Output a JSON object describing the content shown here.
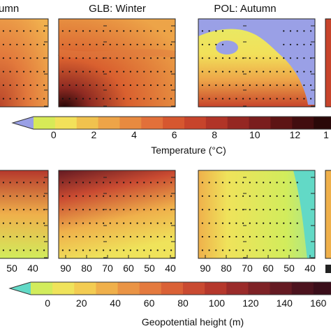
{
  "chart_data": {
    "type": "heatmap",
    "panels": [
      {
        "title": "umn",
        "row": 0
      },
      {
        "title": "GLB: Winter",
        "row": 0
      },
      {
        "title": "POL: Autumn",
        "row": 0
      },
      {
        "title": "",
        "row": 1
      },
      {
        "title": "",
        "row": 1
      },
      {
        "title": "",
        "row": 1
      }
    ],
    "x_ticks_left": [
      "50",
      "40"
    ],
    "x_ticks": [
      "90",
      "80",
      "70",
      "60",
      "50",
      "40"
    ],
    "colorbars": [
      {
        "label": "Temperature (°C)",
        "ticks": [
          "0",
          "2",
          "4",
          "6",
          "8",
          "10",
          "12",
          "1"
        ],
        "range": [
          -1,
          14
        ],
        "colors": [
          "#9aa0e6",
          "#d7ea57",
          "#f2e15a",
          "#f0c24e",
          "#eda448",
          "#e88a40",
          "#e2703a",
          "#d6572f",
          "#c7442b",
          "#b13427",
          "#952722",
          "#7a1d1d",
          "#5d1414",
          "#420d0f",
          "#2a0808"
        ]
      },
      {
        "label": "Geopotential height (m)",
        "ticks": [
          "0",
          "20",
          "40",
          "60",
          "80",
          "100",
          "120",
          "140",
          "160"
        ],
        "range": [
          -10,
          170
        ],
        "colors": [
          "#62d9c6",
          "#d2ec5c",
          "#efe35b",
          "#f3cc52",
          "#efb04b",
          "#ea9445",
          "#e47a3e",
          "#da6136",
          "#c94a31",
          "#b5382c",
          "#9a2b2a",
          "#7e2226",
          "#641a22",
          "#4c131e",
          "#3a0e1a"
        ]
      }
    ]
  }
}
